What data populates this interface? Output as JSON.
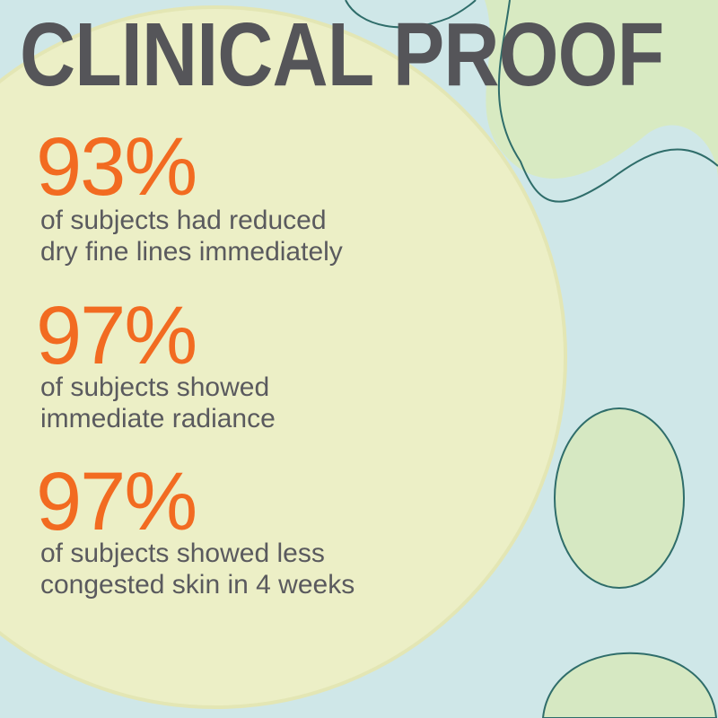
{
  "title": "CLINICAL PROOF",
  "stats": [
    {
      "value": "93%",
      "lines": [
        "of subjects had reduced",
        "dry fine lines immediately"
      ]
    },
    {
      "value": "97%",
      "lines": [
        "of subjects showed",
        "immediate radiance"
      ]
    },
    {
      "value": "97%",
      "lines": [
        "of subjects showed less",
        "congested skin in 4 weeks"
      ]
    }
  ],
  "colors": {
    "accent": "#f26b21",
    "text": "#555559",
    "background": "#cfe7e8",
    "pad": "#ecefc6"
  }
}
